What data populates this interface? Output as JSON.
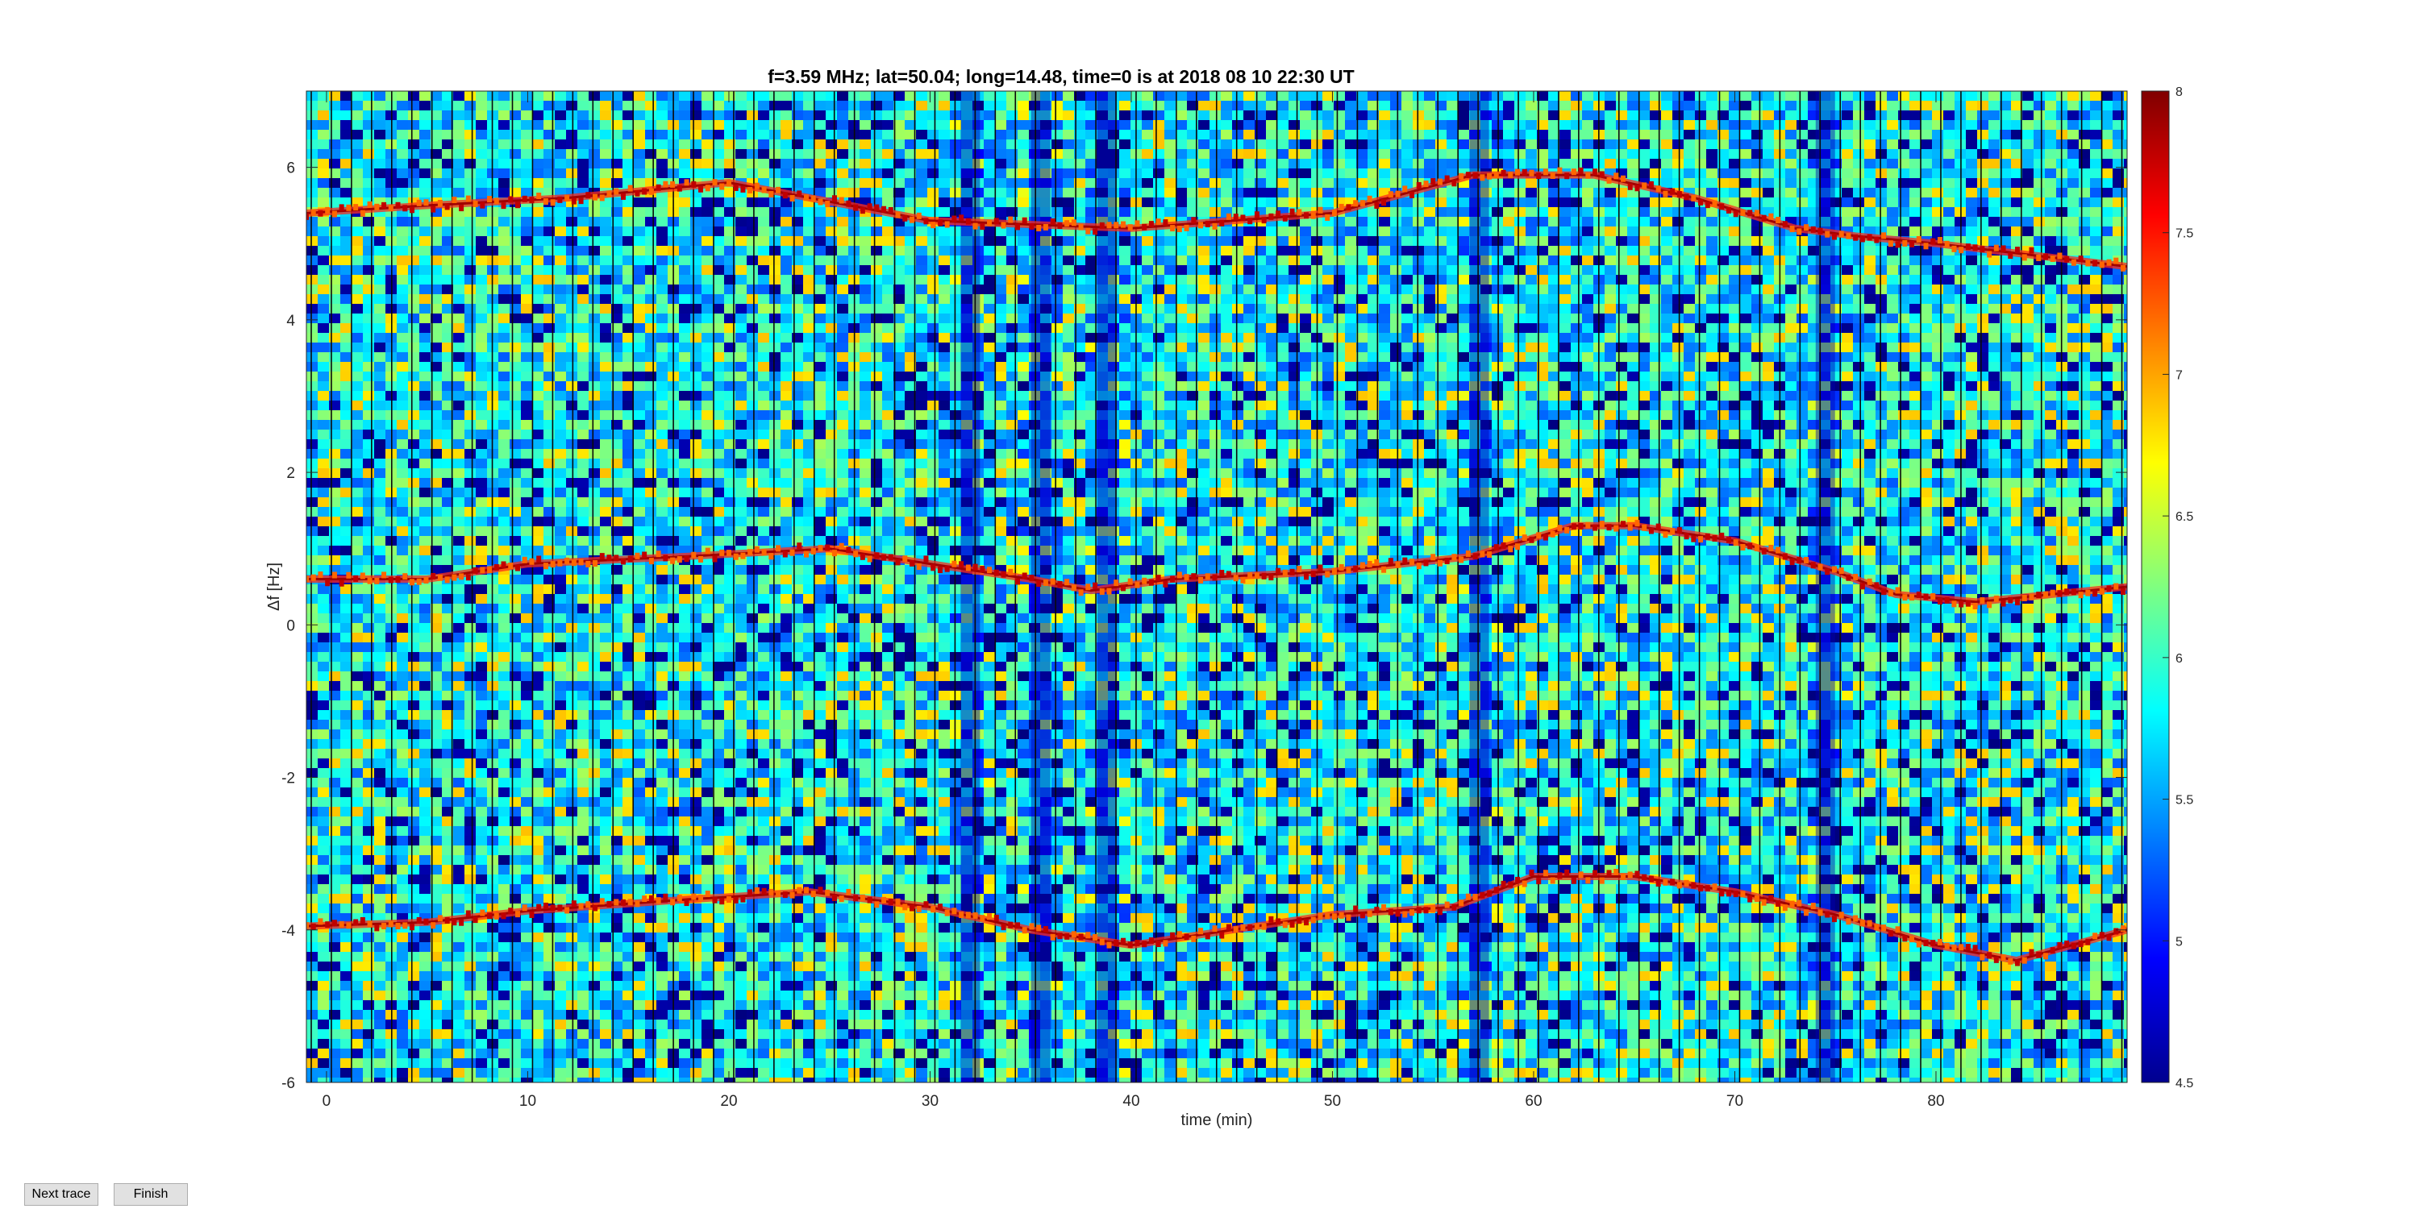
{
  "buttons": {
    "next_trace": "Next trace",
    "finish": "Finish"
  },
  "chart_data": {
    "type": "heatmap",
    "title": "f=3.59 MHz;  lat=50.04; long=14.48, time=0 is at 2018 08 10 22:30 UT",
    "xlabel": "time (min)",
    "ylabel": "Δf [Hz]",
    "xlim": [
      -1,
      89.5
    ],
    "ylim": [
      -6,
      7
    ],
    "xticks": [
      0,
      10,
      20,
      30,
      40,
      50,
      60,
      70,
      80
    ],
    "yticks": [
      -6,
      -4,
      -2,
      0,
      2,
      4,
      6
    ],
    "colorbar": {
      "ticks": [
        4.5,
        5,
        5.5,
        6,
        6.5,
        7,
        7.5,
        8
      ],
      "range": [
        4.5,
        8
      ],
      "colormap": "jet"
    },
    "background_level": 5.8,
    "dark_columns_min": [
      32,
      35.5,
      38.8,
      57.3,
      74.5
    ],
    "trace_line_spacing_min": 1,
    "series": [
      {
        "x": [
          -1,
          5,
          12,
          20,
          30,
          40,
          50,
          57,
          63,
          68,
          73,
          76,
          80,
          89.5
        ],
        "y": [
          5.4,
          5.5,
          5.6,
          5.8,
          5.3,
          5.2,
          5.4,
          5.9,
          5.9,
          5.6,
          5.2,
          5.1,
          5.0,
          4.7
        ]
      },
      {
        "x": [
          -1,
          5,
          10,
          18,
          25,
          30,
          35,
          38,
          42,
          50,
          57,
          62,
          65,
          70,
          75,
          78,
          82,
          89.5
        ],
        "y": [
          0.6,
          0.6,
          0.8,
          0.9,
          1.0,
          0.8,
          0.6,
          0.45,
          0.6,
          0.7,
          0.9,
          1.3,
          1.3,
          1.1,
          0.7,
          0.4,
          0.3,
          0.5
        ]
      },
      {
        "x": [
          -1,
          5,
          10,
          18,
          24,
          30,
          35,
          40,
          45,
          50,
          56,
          60,
          65,
          70,
          75,
          80,
          84,
          89.5
        ],
        "y": [
          -3.95,
          -3.9,
          -3.75,
          -3.6,
          -3.5,
          -3.7,
          -4.0,
          -4.2,
          -4.0,
          -3.8,
          -3.7,
          -3.3,
          -3.3,
          -3.5,
          -3.8,
          -4.2,
          -4.4,
          -4.0
        ]
      }
    ]
  }
}
